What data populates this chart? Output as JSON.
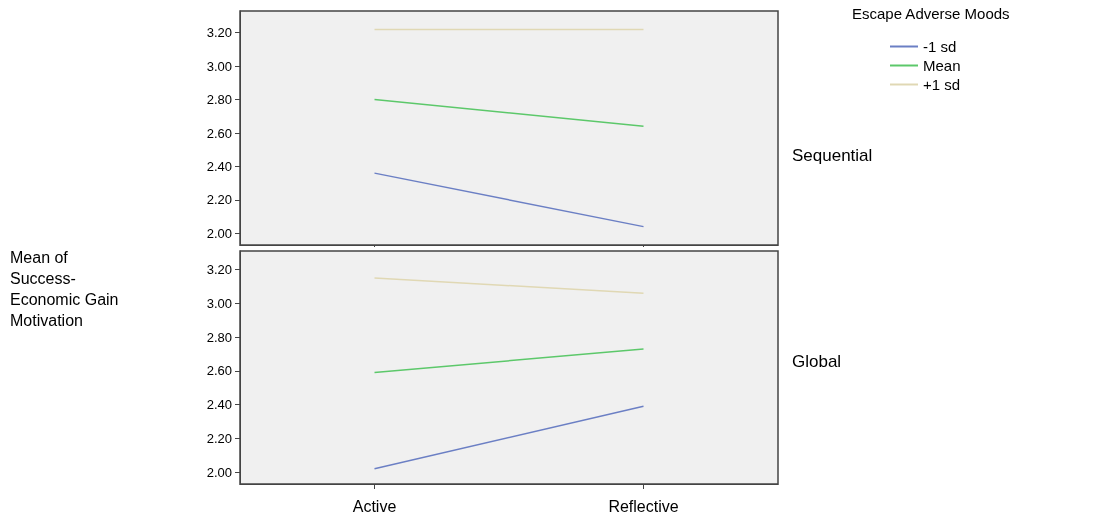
{
  "chart_data": [
    {
      "type": "line",
      "annotations": [
        "Sequential"
      ],
      "legend_title": "Escape Adverse Moods",
      "legend": "top right",
      "marker": "none",
      "tick_labels": "y",
      "categories": [
        null,
        null
      ],
      "ylim": [
        1.93,
        3.33
      ],
      "yticks": [
        {
          "value": 2,
          "label": "2.00"
        },
        {
          "value": 2.2,
          "label": "2.20"
        },
        {
          "value": 2.4,
          "label": "2.40"
        },
        {
          "value": 2.6,
          "label": "2.60"
        },
        {
          "value": 2.8,
          "label": "2.80"
        },
        {
          "value": 3,
          "label": "3.00"
        },
        {
          "value": 3.2,
          "label": "3.20"
        }
      ],
      "series": [
        {
          "name": "-1 sd",
          "color": "#6b7fc4",
          "values": [
            2.36,
            2.04
          ]
        },
        {
          "name": "Mean",
          "color": "#5cc86a",
          "values": [
            2.8,
            2.64
          ]
        },
        {
          "name": "+1 sd",
          "color": "#e0d8b4",
          "values": [
            3.22,
            3.22
          ]
        }
      ]
    },
    {
      "type": "line",
      "annotations": [
        "Global"
      ],
      "ylabel": "Mean of Success-Economic Gain Motivation",
      "marker": "none",
      "categories": [
        "Active",
        "Reflective"
      ],
      "ylim": [
        1.93,
        3.31
      ],
      "yticks": [
        {
          "value": 2,
          "label": "2.00"
        },
        {
          "value": 2.2,
          "label": "2.20"
        },
        {
          "value": 2.4,
          "label": "2.40"
        },
        {
          "value": 2.6,
          "label": "2.60"
        },
        {
          "value": 2.8,
          "label": "2.80"
        },
        {
          "value": 3,
          "label": "3.00"
        },
        {
          "value": 3.2,
          "label": "3.20"
        }
      ],
      "series": [
        {
          "color": "#6b7fc4",
          "values": [
            2.02,
            2.39
          ]
        },
        {
          "color": "#5cc86a",
          "values": [
            2.59,
            2.73
          ]
        },
        {
          "color": "#e0d8b4",
          "values": [
            3.15,
            3.06
          ]
        }
      ]
    }
  ]
}
